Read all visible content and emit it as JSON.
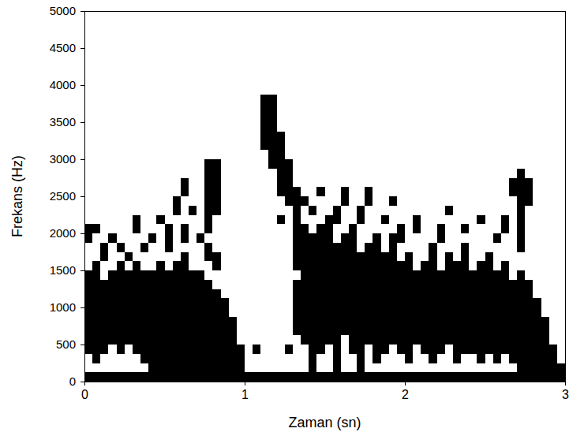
{
  "chart_data": {
    "type": "spectrogram",
    "xlabel": "Zaman (sn)",
    "ylabel": "Frekans (Hz)",
    "color": "#000000",
    "xlim": [
      0,
      3
    ],
    "xticks": [
      0,
      1,
      2,
      3
    ],
    "ylim": [
      0,
      5000
    ],
    "yticks": [
      0,
      500,
      1000,
      1500,
      2000,
      2500,
      3000,
      3500,
      4000,
      4500,
      5000
    ],
    "x_bins": [
      0,
      0.05,
      0.1,
      0.15,
      0.2,
      0.25,
      0.3,
      0.35,
      0.4,
      0.45,
      0.5,
      0.55,
      0.6,
      0.65,
      0.7,
      0.75,
      0.8,
      0.85,
      0.9,
      0.95,
      1,
      1.05,
      1.1,
      1.15,
      1.2,
      1.25,
      1.3,
      1.35,
      1.4,
      1.45,
      1.5,
      1.55,
      1.6,
      1.65,
      1.7,
      1.75,
      1.8,
      1.85,
      1.9,
      1.95,
      2,
      2.05,
      2.1,
      2.15,
      2.2,
      2.25,
      2.3,
      2.35,
      2.4,
      2.45,
      2.5,
      2.55,
      2.6,
      2.65,
      2.7,
      2.75,
      2.8,
      2.85,
      2.9,
      2.95,
      3
    ],
    "bands": [
      [
        [
          0,
          125
        ],
        [
          375,
          1500
        ],
        [
          1875,
          2125
        ]
      ],
      [
        [
          0,
          125
        ],
        [
          250,
          1625
        ],
        [
          2000,
          2125
        ]
      ],
      [
        [
          0,
          125
        ],
        [
          375,
          1375
        ],
        [
          1625,
          1875
        ]
      ],
      [
        [
          0,
          125
        ],
        [
          500,
          1500
        ],
        [
          1875,
          2000
        ]
      ],
      [
        [
          0,
          125
        ],
        [
          375,
          1625
        ],
        [
          1750,
          1875
        ]
      ],
      [
        [
          0,
          125
        ],
        [
          500,
          1500
        ],
        [
          1625,
          1750
        ]
      ],
      [
        [
          0,
          125
        ],
        [
          375,
          1625
        ],
        [
          2000,
          2250
        ]
      ],
      [
        [
          0,
          125
        ],
        [
          250,
          1500
        ],
        [
          1750,
          1875
        ]
      ],
      [
        [
          0,
          1500
        ],
        [
          1875,
          2000
        ]
      ],
      [
        [
          0,
          1625
        ],
        [
          2125,
          2250
        ]
      ],
      [
        [
          0,
          1500
        ],
        [
          1750,
          2125
        ]
      ],
      [
        [
          0,
          1625
        ],
        [
          2250,
          2500
        ]
      ],
      [
        [
          0,
          1750
        ],
        [
          1875,
          2125
        ],
        [
          2500,
          2750
        ]
      ],
      [
        [
          0,
          1500
        ],
        [
          2250,
          2375
        ]
      ],
      [
        [
          0,
          1500
        ],
        [
          1875,
          2000
        ]
      ],
      [
        [
          0,
          1375
        ],
        [
          1625,
          1875
        ],
        [
          2000,
          3000
        ]
      ],
      [
        [
          0,
          1250
        ],
        [
          1500,
          1750
        ],
        [
          2250,
          3000
        ]
      ],
      [
        [
          0,
          1125
        ]
      ],
      [
        [
          0,
          875
        ]
      ],
      [
        [
          0,
          500
        ]
      ],
      [
        [
          0,
          125
        ]
      ],
      [
        [
          0,
          125
        ],
        [
          375,
          500
        ]
      ],
      [
        [
          0,
          125
        ],
        [
          3125,
          3875
        ]
      ],
      [
        [
          0,
          125
        ],
        [
          2875,
          3875
        ]
      ],
      [
        [
          0,
          125
        ],
        [
          2125,
          2250
        ],
        [
          2500,
          3375
        ]
      ],
      [
        [
          0,
          125
        ],
        [
          375,
          500
        ],
        [
          2375,
          3000
        ]
      ],
      [
        [
          0,
          125
        ],
        [
          625,
          1375
        ],
        [
          1500,
          2625
        ]
      ],
      [
        [
          0,
          125
        ],
        [
          500,
          2125
        ],
        [
          2375,
          2500
        ]
      ],
      [
        [
          0,
          2000
        ],
        [
          2250,
          2375
        ]
      ],
      [
        [
          0,
          125
        ],
        [
          375,
          2125
        ],
        [
          2500,
          2625
        ]
      ],
      [
        [
          0,
          125
        ],
        [
          500,
          2250
        ]
      ],
      [
        [
          0,
          1875
        ],
        [
          2125,
          2375
        ]
      ],
      [
        [
          0,
          125
        ],
        [
          625,
          2000
        ],
        [
          2375,
          2625
        ]
      ],
      [
        [
          0,
          125
        ],
        [
          375,
          2125
        ]
      ],
      [
        [
          0,
          1750
        ],
        [
          2125,
          2375
        ]
      ],
      [
        [
          0,
          125
        ],
        [
          500,
          1875
        ],
        [
          2375,
          2625
        ]
      ],
      [
        [
          0,
          125
        ],
        [
          250,
          2000
        ]
      ],
      [
        [
          0,
          125
        ],
        [
          375,
          1750
        ],
        [
          2125,
          2250
        ]
      ],
      [
        [
          0,
          125
        ],
        [
          500,
          2000
        ],
        [
          2375,
          2500
        ]
      ],
      [
        [
          0,
          125
        ],
        [
          375,
          1625
        ],
        [
          1875,
          2125
        ]
      ],
      [
        [
          0,
          125
        ],
        [
          250,
          1750
        ]
      ],
      [
        [
          0,
          125
        ],
        [
          500,
          1500
        ],
        [
          2000,
          2250
        ]
      ],
      [
        [
          0,
          125
        ],
        [
          375,
          1625
        ]
      ],
      [
        [
          0,
          125
        ],
        [
          250,
          1875
        ]
      ],
      [
        [
          0,
          125
        ],
        [
          375,
          1500
        ],
        [
          1875,
          2125
        ]
      ],
      [
        [
          0,
          125
        ],
        [
          500,
          1750
        ],
        [
          2250,
          2375
        ]
      ],
      [
        [
          0,
          125
        ],
        [
          250,
          1625
        ]
      ],
      [
        [
          0,
          125
        ],
        [
          375,
          1875
        ],
        [
          2000,
          2125
        ]
      ],
      [
        [
          0,
          125
        ],
        [
          375,
          1500
        ]
      ],
      [
        [
          0,
          125
        ],
        [
          250,
          1625
        ],
        [
          2125,
          2250
        ]
      ],
      [
        [
          0,
          125
        ],
        [
          375,
          1750
        ]
      ],
      [
        [
          0,
          125
        ],
        [
          250,
          1500
        ],
        [
          1875,
          2000
        ]
      ],
      [
        [
          0,
          125
        ],
        [
          375,
          1625
        ],
        [
          2000,
          2250
        ]
      ],
      [
        [
          0,
          125
        ],
        [
          250,
          1375
        ],
        [
          2500,
          2750
        ]
      ],
      [
        [
          0,
          1500
        ],
        [
          1750,
          2875
        ]
      ],
      [
        [
          0,
          1375
        ],
        [
          2375,
          2750
        ]
      ],
      [
        [
          0,
          1125
        ]
      ],
      [
        [
          0,
          875
        ]
      ],
      [
        [
          0,
          500
        ]
      ],
      [
        [
          0,
          250
        ]
      ]
    ]
  }
}
